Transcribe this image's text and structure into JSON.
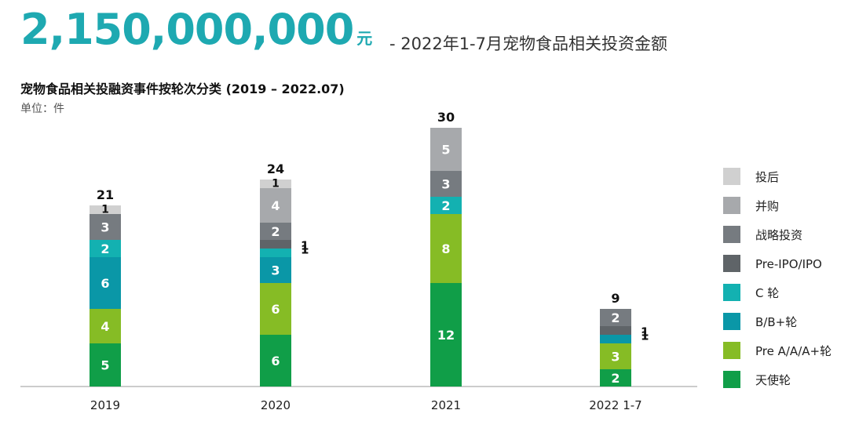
{
  "header": {
    "amount": "2,150,000,000",
    "amount_unit": "元",
    "subtitle": "- 2022年1-7月宠物食品相关投资金额"
  },
  "chart_data": {
    "type": "bar",
    "stacked": true,
    "title": "宠物食品相关投融资事件按轮次分类 (2019 – 2022.07)",
    "unit_label": "单位：件",
    "categories": [
      "2019",
      "2020",
      "2021",
      "2022 1-7"
    ],
    "totals": [
      21,
      24,
      30,
      9
    ],
    "ylim": [
      0,
      31
    ],
    "legend_position": "right",
    "series": [
      {
        "name": "天使轮",
        "color": "#109e48",
        "values": [
          5,
          6,
          12,
          2
        ]
      },
      {
        "name": "Pre A/A/A+轮",
        "color": "#86bc25",
        "values": [
          4,
          6,
          8,
          3
        ]
      },
      {
        "name": "B/B+轮",
        "color": "#0a97a7",
        "values": [
          6,
          3,
          0,
          1
        ]
      },
      {
        "name": "C 轮",
        "color": "#13b1b1",
        "values": [
          2,
          1,
          2,
          0
        ]
      },
      {
        "name": "Pre-IPO/IPO",
        "color": "#5f6468",
        "values": [
          0,
          1,
          0,
          1
        ]
      },
      {
        "name": "战略投资",
        "color": "#767b80",
        "values": [
          3,
          2,
          3,
          2
        ]
      },
      {
        "name": "并购",
        "color": "#a7a9ac",
        "values": [
          0,
          4,
          5,
          0
        ]
      },
      {
        "name": "投后",
        "color": "#d0d0d0",
        "values": [
          1,
          1,
          0,
          0
        ]
      }
    ]
  }
}
